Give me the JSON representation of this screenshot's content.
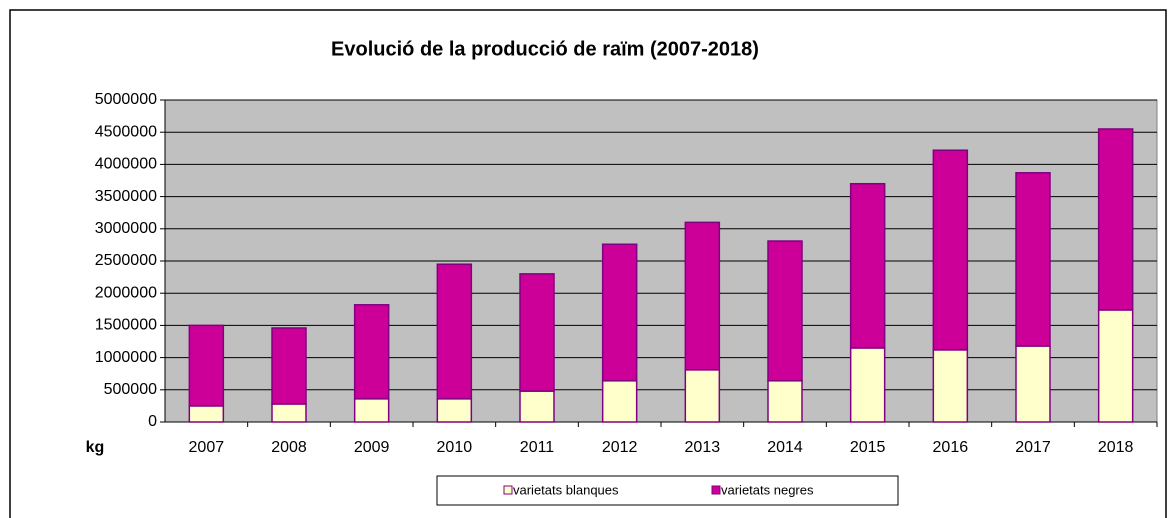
{
  "chart_data": {
    "type": "bar",
    "stacked": true,
    "title": "Evolució de la producció de raïm (2007-2018)",
    "y_label": "kg",
    "categories": [
      "2007",
      "2008",
      "2009",
      "2010",
      "2011",
      "2012",
      "2013",
      "2014",
      "2015",
      "2016",
      "2017",
      "2018"
    ],
    "series": [
      {
        "name": "varietats blanques",
        "color": "#ffffcc",
        "values": [
          250000,
          280000,
          360000,
          360000,
          480000,
          640000,
          810000,
          640000,
          1150000,
          1120000,
          1180000,
          1740000
        ]
      },
      {
        "name": "varietats negres",
        "color": "#cc0099",
        "values": [
          1250000,
          1180000,
          1460000,
          2090000,
          1820000,
          2120000,
          2290000,
          2170000,
          2550000,
          3100000,
          2690000,
          2810000
        ]
      }
    ],
    "ylim": [
      0,
      5000000
    ],
    "yticks": [
      0,
      500000,
      1000000,
      1500000,
      2000000,
      2500000,
      3000000,
      3500000,
      4000000,
      4500000,
      5000000
    ],
    "grid": true,
    "legend": "bottom"
  }
}
